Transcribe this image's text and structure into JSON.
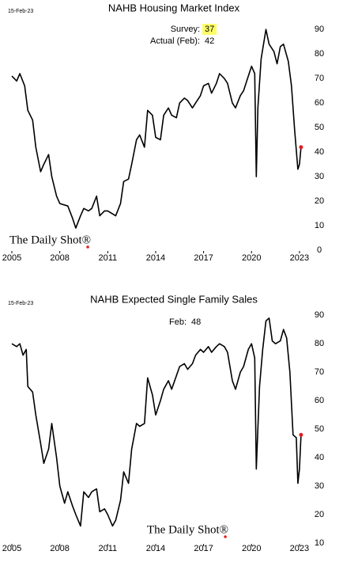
{
  "chart_data": [
    {
      "type": "line",
      "title": "NAHB Housing Market Index",
      "date": "15-Feb-23",
      "logo": "The Daily Shot®",
      "annotations": [
        {
          "label": "Survey:",
          "value": 37,
          "highlight": "#ffff66"
        },
        {
          "label": "Actual (Feb):",
          "value": 42
        }
      ],
      "xlim": [
        2005,
        2023.4
      ],
      "xticks": [
        2005,
        2008,
        2011,
        2014,
        2017,
        2020,
        2023
      ],
      "ylim": [
        0,
        92
      ],
      "yticks": [
        0,
        10,
        20,
        30,
        40,
        50,
        60,
        70,
        80,
        90
      ],
      "endpoint_color": "#e02020",
      "series": [
        {
          "color": "#000000",
          "x": [
            2005.0,
            2005.3,
            2005.5,
            2005.8,
            2006.0,
            2006.3,
            2006.5,
            2006.8,
            2007.0,
            2007.3,
            2007.5,
            2007.8,
            2008.0,
            2008.5,
            2008.8,
            2009.0,
            2009.3,
            2009.5,
            2009.8,
            2010.0,
            2010.3,
            2010.5,
            2010.8,
            2011.0,
            2011.5,
            2011.8,
            2012.0,
            2012.3,
            2012.5,
            2012.8,
            2013.0,
            2013.3,
            2013.5,
            2013.8,
            2014.0,
            2014.3,
            2014.5,
            2014.8,
            2015.0,
            2015.3,
            2015.5,
            2015.8,
            2016.0,
            2016.3,
            2016.5,
            2016.8,
            2017.0,
            2017.3,
            2017.5,
            2017.8,
            2018.0,
            2018.3,
            2018.5,
            2018.8,
            2019.0,
            2019.3,
            2019.5,
            2019.8,
            2020.0,
            2020.2,
            2020.3,
            2020.4,
            2020.6,
            2020.9,
            2021.1,
            2021.4,
            2021.6,
            2021.8,
            2022.0,
            2022.3,
            2022.5,
            2022.7,
            2022.9,
            2023.0,
            2023.1
          ],
          "values": [
            71,
            69,
            72,
            67,
            57,
            53,
            42,
            32,
            35,
            39,
            30,
            22,
            19,
            18,
            13,
            9,
            14,
            17,
            16,
            17,
            22,
            14,
            16,
            16,
            14,
            19,
            28,
            29,
            35,
            45,
            47,
            42,
            57,
            55,
            46,
            45,
            55,
            58,
            55,
            54,
            60,
            62,
            61,
            58,
            60,
            63,
            67,
            68,
            64,
            68,
            72,
            70,
            68,
            60,
            58,
            63,
            65,
            71,
            75,
            72,
            30,
            58,
            78,
            90,
            84,
            81,
            76,
            83,
            84,
            77,
            67,
            49,
            33,
            35,
            42
          ]
        }
      ]
    },
    {
      "type": "line",
      "title": "NAHB Expected Single Family Sales",
      "date": "15-Feb-23",
      "logo": "The Daily Shot®",
      "annotations": [
        {
          "label": "Feb:",
          "value": 48
        }
      ],
      "xlim": [
        2005,
        2023.4
      ],
      "xticks": [
        2005,
        2008,
        2011,
        2014,
        2017,
        2020,
        2023
      ],
      "ylim": [
        10,
        92
      ],
      "yticks": [
        10,
        20,
        30,
        40,
        50,
        60,
        70,
        80,
        90
      ],
      "endpoint_color": "#e02020",
      "series": [
        {
          "color": "#000000",
          "x": [
            2005.0,
            2005.3,
            2005.5,
            2005.7,
            2005.9,
            2006.0,
            2006.3,
            2006.5,
            2006.8,
            2007.0,
            2007.3,
            2007.5,
            2007.8,
            2008.0,
            2008.3,
            2008.5,
            2008.8,
            2009.0,
            2009.3,
            2009.5,
            2009.8,
            2010.0,
            2010.3,
            2010.5,
            2010.8,
            2011.0,
            2011.3,
            2011.5,
            2011.8,
            2012.0,
            2012.3,
            2012.5,
            2012.8,
            2013.0,
            2013.3,
            2013.5,
            2013.8,
            2014.0,
            2014.3,
            2014.5,
            2014.8,
            2015.0,
            2015.5,
            2015.8,
            2016.0,
            2016.3,
            2016.5,
            2016.8,
            2017.0,
            2017.3,
            2017.5,
            2017.8,
            2018.0,
            2018.3,
            2018.5,
            2018.8,
            2019.0,
            2019.3,
            2019.5,
            2019.8,
            2020.0,
            2020.2,
            2020.3,
            2020.5,
            2020.7,
            2020.9,
            2021.1,
            2021.3,
            2021.5,
            2021.8,
            2022.0,
            2022.2,
            2022.4,
            2022.6,
            2022.8,
            2022.9,
            2023.0,
            2023.1
          ],
          "values": [
            80,
            79,
            80,
            76,
            78,
            65,
            63,
            55,
            45,
            38,
            43,
            52,
            40,
            30,
            24,
            28,
            23,
            20,
            16,
            28,
            26,
            28,
            29,
            21,
            22,
            20,
            16,
            18,
            25,
            35,
            31,
            43,
            52,
            51,
            52,
            68,
            62,
            55,
            60,
            64,
            67,
            64,
            72,
            73,
            71,
            73,
            76,
            78,
            77,
            79,
            77,
            79,
            80,
            79,
            77,
            67,
            64,
            70,
            72,
            78,
            80,
            75,
            36,
            65,
            78,
            88,
            89,
            81,
            80,
            81,
            85,
            82,
            70,
            48,
            47,
            31,
            36,
            48
          ]
        }
      ]
    }
  ]
}
